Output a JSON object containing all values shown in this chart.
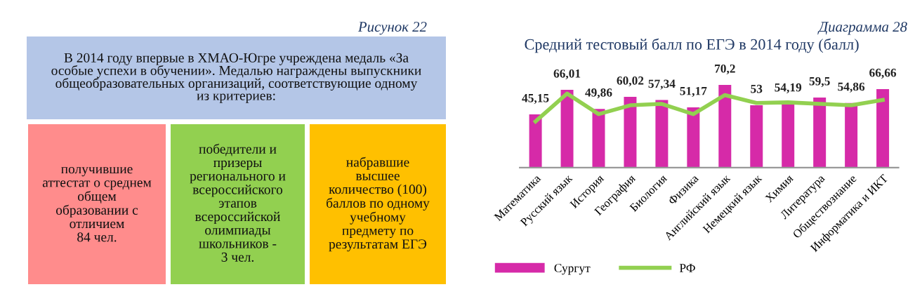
{
  "chart_data": [
    {
      "type": "other",
      "title": "Рисунок 22",
      "annotations": [
        "В 2014 году впервые в ХМАО-Югре учреждена медаль «За\nособые успехи в обучении». Медалью награждены выпускники\nобщеобразовательных организаций, соответствующие одному\nиз критериев:",
        "получившие\nаттестат о среднем\nобщем\nобразовании с\nотличием\n84 чел.",
        "победители и\nпризеры\nрегионального и\nвсероссийского\nэтапов\nвсероссийской\nолимпиады\nшкольников -\n3 чел.",
        "набравшие\nвысшее\nколичество (100)\nбаллов по одному\nучебному\nпредмету по\nрезультатам ЕГЭ"
      ]
    },
    {
      "type": "bar",
      "title": "Средний тестовый балл по ЕГЭ в 2014 году (балл)",
      "annotations": [
        "Диаграмма 28"
      ],
      "categories": [
        "Математика",
        "Русский язык",
        "История",
        "География",
        "Биология",
        "Физика",
        "Английский язык",
        "Немецкий язык",
        "Химия",
        "Литература",
        "Обществознание",
        "Информатика и ИКТ"
      ],
      "series": [
        {
          "name": "Сургут",
          "color": "#d62aa8",
          "values": [
            45.15,
            66.01,
            49.86,
            60.02,
            57.34,
            51.17,
            70.2,
            53,
            54.19,
            59.5,
            54.86,
            66.66
          ],
          "value_labels": [
            "45,15",
            "66,01",
            "49,86",
            "60,02",
            "57,34",
            "51,17",
            "70,2",
            "53",
            "54,19",
            "59,5",
            "54,86",
            "66,66"
          ]
        },
        {
          "name": "РФ",
          "type": "line",
          "color": "#92d050",
          "values": [
            39.2,
            62.8,
            45.4,
            52.9,
            54.1,
            45.4,
            61.6,
            54.9,
            55.4,
            54.1,
            52.9,
            57.4
          ]
        }
      ],
      "legend": "bottom",
      "grid": false
    }
  ]
}
